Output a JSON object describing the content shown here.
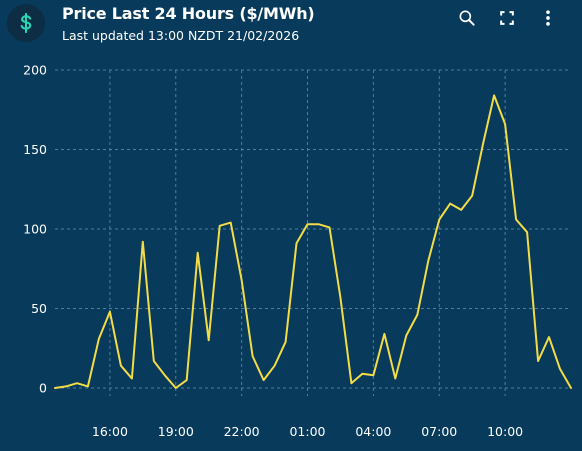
{
  "header": {
    "icon": "dollar-icon",
    "title": "Price Last 24 Hours ($/MWh)",
    "subtitle": "Last updated 13:00 NZDT 21/02/2026"
  },
  "toolbar": {
    "zoom_icon": "magnifier-icon",
    "fullscreen_icon": "fullscreen-icon",
    "menu_icon": "more-vert-icon"
  },
  "colors": {
    "background": "#073a5b",
    "line": "#f3dc45",
    "grid": "#4f7f9c",
    "badge": "#0c2d44",
    "badge_icon": "#2bd6b6"
  },
  "chart_data": {
    "type": "line",
    "title": "Price Last 24 Hours ($/MWh)",
    "ylim": [
      0,
      200
    ],
    "yticks": [
      0,
      50,
      100,
      150,
      200
    ],
    "xlim": [
      13.5,
      37.0
    ],
    "xticks": [
      {
        "x": 16,
        "label": "16:00"
      },
      {
        "x": 19,
        "label": "19:00"
      },
      {
        "x": 22,
        "label": "22:00"
      },
      {
        "x": 25,
        "label": "01:00"
      },
      {
        "x": 28,
        "label": "04:00"
      },
      {
        "x": 31,
        "label": "07:00"
      },
      {
        "x": 34,
        "label": "10:00"
      }
    ],
    "grid": true,
    "x": [
      13.5,
      14.0,
      14.5,
      15.0,
      15.5,
      16.0,
      16.5,
      17.0,
      17.5,
      18.0,
      18.5,
      19.0,
      19.5,
      20.0,
      20.5,
      21.0,
      21.5,
      22.0,
      22.5,
      23.0,
      23.5,
      24.0,
      24.5,
      25.0,
      25.5,
      26.0,
      26.5,
      27.0,
      27.5,
      28.0,
      28.5,
      29.0,
      29.5,
      30.0,
      30.5,
      31.0,
      31.5,
      32.0,
      32.5,
      33.0,
      33.5,
      34.0,
      34.5,
      35.0,
      35.5,
      36.0,
      36.5,
      37.0
    ],
    "y": [
      0,
      1,
      3,
      1,
      31,
      48,
      14,
      6,
      92,
      17,
      8,
      0,
      5,
      85,
      30,
      102,
      104,
      68,
      20,
      5,
      14,
      29,
      91,
      103,
      103,
      101,
      57,
      3,
      9,
      8,
      34,
      6,
      33,
      46,
      80,
      106,
      116,
      112,
      121,
      154,
      184,
      166,
      106,
      98,
      17,
      32,
      12,
      0
    ]
  }
}
